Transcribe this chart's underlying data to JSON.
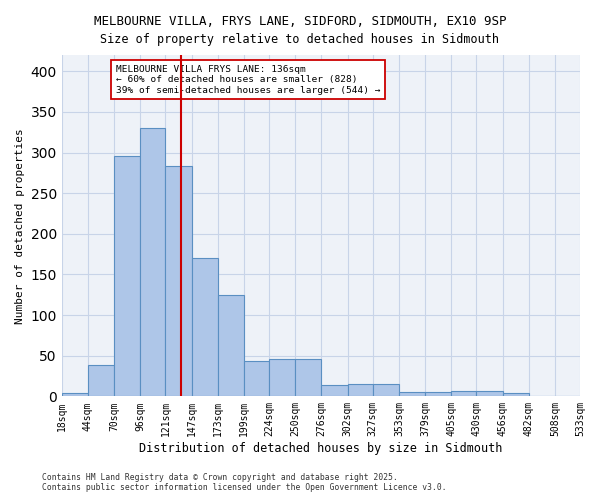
{
  "title_line1": "MELBOURNE VILLA, FRYS LANE, SIDFORD, SIDMOUTH, EX10 9SP",
  "title_line2": "Size of property relative to detached houses in Sidmouth",
  "xlabel": "Distribution of detached houses by size in Sidmouth",
  "ylabel": "Number of detached properties",
  "footer_line1": "Contains HM Land Registry data © Crown copyright and database right 2025.",
  "footer_line2": "Contains public sector information licensed under the Open Government Licence v3.0.",
  "annotation_line1": "MELBOURNE VILLA FRYS LANE: 136sqm",
  "annotation_line2": "← 60% of detached houses are smaller (828)",
  "annotation_line3": "39% of semi-detached houses are larger (544) →",
  "bar_edges": [
    18,
    44,
    70,
    96,
    121,
    147,
    173,
    199,
    224,
    250,
    276,
    302,
    327,
    353,
    379,
    405,
    430,
    456,
    482,
    508,
    533
  ],
  "bar_heights": [
    4,
    39,
    296,
    330,
    284,
    170,
    125,
    44,
    46,
    46,
    14,
    15,
    15,
    5,
    5,
    6,
    6,
    4,
    1,
    1
  ],
  "bar_color": "#aec6e8",
  "bar_edge_color": "#5a8fc2",
  "grid_color": "#c8d4e8",
  "bg_color": "#eef2f8",
  "property_line_x": 136,
  "property_line_color": "#cc0000",
  "annotation_box_edge_color": "#cc0000",
  "ylim": [
    0,
    420
  ],
  "yticks": [
    0,
    50,
    100,
    150,
    200,
    250,
    300,
    350,
    400
  ]
}
